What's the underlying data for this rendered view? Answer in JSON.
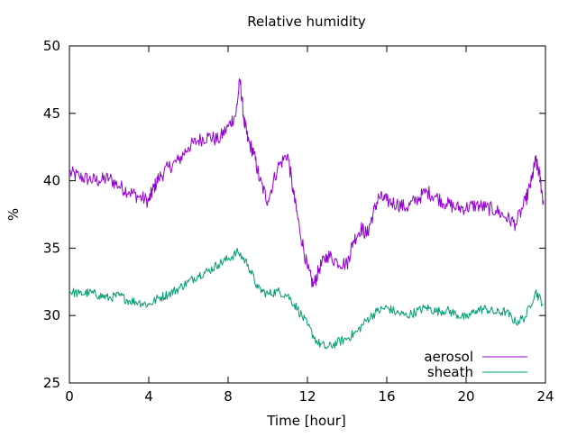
{
  "chart_data": {
    "type": "line",
    "title": "Relative humidity",
    "xlabel": "Time [hour]",
    "ylabel": "%",
    "xlim": [
      0,
      24
    ],
    "ylim": [
      25,
      50
    ],
    "x_ticks": [
      "0",
      "4",
      "8",
      "12",
      "16",
      "20",
      "24"
    ],
    "y_ticks": [
      "25",
      "30",
      "35",
      "40",
      "45",
      "50"
    ],
    "grid": false,
    "legend_position": "bottom-right",
    "colors": {
      "aerosol": "#9400d3",
      "sheath": "#009e73"
    },
    "series": [
      {
        "name": "aerosol",
        "color": "#9400d3",
        "points": [
          [
            0.0,
            40.6
          ],
          [
            0.5,
            40.3
          ],
          [
            1.0,
            40.1
          ],
          [
            1.5,
            40.0
          ],
          [
            2.0,
            40.2
          ],
          [
            2.5,
            39.6
          ],
          [
            3.0,
            39.2
          ],
          [
            3.5,
            38.8
          ],
          [
            4.0,
            38.5
          ],
          [
            4.2,
            39.3
          ],
          [
            4.5,
            40.2
          ],
          [
            5.0,
            41.0
          ],
          [
            5.5,
            41.5
          ],
          [
            6.0,
            42.5
          ],
          [
            6.5,
            43.0
          ],
          [
            7.0,
            43.3
          ],
          [
            7.5,
            43.0
          ],
          [
            8.0,
            44.0
          ],
          [
            8.4,
            45.0
          ],
          [
            8.6,
            47.5
          ],
          [
            8.8,
            44.5
          ],
          [
            9.0,
            43.0
          ],
          [
            9.3,
            42.0
          ],
          [
            9.6,
            40.0
          ],
          [
            10.0,
            38.5
          ],
          [
            10.5,
            41.0
          ],
          [
            11.0,
            42.0
          ],
          [
            11.3,
            39.0
          ],
          [
            11.6,
            36.5
          ],
          [
            12.0,
            33.5
          ],
          [
            12.3,
            32.2
          ],
          [
            12.6,
            33.5
          ],
          [
            13.0,
            34.5
          ],
          [
            13.5,
            34.0
          ],
          [
            14.0,
            33.8
          ],
          [
            14.3,
            35.5
          ],
          [
            14.7,
            36.5
          ],
          [
            15.0,
            36.0
          ],
          [
            15.3,
            37.5
          ],
          [
            15.6,
            38.8
          ],
          [
            16.0,
            38.5
          ],
          [
            16.5,
            38.3
          ],
          [
            17.0,
            38.0
          ],
          [
            17.5,
            38.6
          ],
          [
            18.0,
            39.2
          ],
          [
            18.5,
            38.8
          ],
          [
            19.0,
            38.3
          ],
          [
            19.5,
            38.0
          ],
          [
            20.0,
            38.0
          ],
          [
            20.5,
            38.2
          ],
          [
            21.0,
            38.0
          ],
          [
            21.5,
            37.8
          ],
          [
            22.0,
            37.3
          ],
          [
            22.5,
            36.8
          ],
          [
            23.0,
            38.5
          ],
          [
            23.3,
            40.0
          ],
          [
            23.5,
            41.5
          ],
          [
            23.7,
            40.5
          ],
          [
            23.9,
            38.3
          ]
        ]
      },
      {
        "name": "sheath",
        "color": "#009e73",
        "points": [
          [
            0.0,
            31.8
          ],
          [
            0.5,
            31.6
          ],
          [
            1.0,
            31.7
          ],
          [
            1.5,
            31.5
          ],
          [
            2.0,
            31.3
          ],
          [
            2.5,
            31.5
          ],
          [
            3.0,
            31.1
          ],
          [
            3.5,
            31.0
          ],
          [
            4.0,
            30.8
          ],
          [
            4.5,
            31.3
          ],
          [
            5.0,
            31.6
          ],
          [
            5.5,
            32.0
          ],
          [
            6.0,
            32.5
          ],
          [
            6.5,
            33.0
          ],
          [
            7.0,
            33.3
          ],
          [
            7.5,
            33.8
          ],
          [
            8.0,
            34.2
          ],
          [
            8.5,
            34.7
          ],
          [
            9.0,
            33.8
          ],
          [
            9.5,
            32.0
          ],
          [
            10.0,
            31.6
          ],
          [
            10.5,
            31.8
          ],
          [
            11.0,
            31.5
          ],
          [
            11.5,
            30.5
          ],
          [
            12.0,
            29.3
          ],
          [
            12.5,
            28.0
          ],
          [
            13.0,
            27.6
          ],
          [
            13.5,
            28.0
          ],
          [
            14.0,
            28.3
          ],
          [
            14.5,
            28.8
          ],
          [
            15.0,
            29.7
          ],
          [
            15.5,
            30.3
          ],
          [
            16.0,
            30.6
          ],
          [
            16.5,
            30.2
          ],
          [
            17.0,
            30.0
          ],
          [
            17.5,
            30.3
          ],
          [
            18.0,
            30.6
          ],
          [
            18.5,
            30.3
          ],
          [
            19.0,
            30.4
          ],
          [
            19.5,
            30.1
          ],
          [
            20.0,
            29.8
          ],
          [
            20.5,
            30.4
          ],
          [
            21.0,
            30.5
          ],
          [
            21.5,
            30.2
          ],
          [
            22.0,
            30.3
          ],
          [
            22.5,
            29.5
          ],
          [
            23.0,
            29.9
          ],
          [
            23.5,
            31.8
          ],
          [
            23.9,
            30.8
          ]
        ]
      }
    ]
  }
}
